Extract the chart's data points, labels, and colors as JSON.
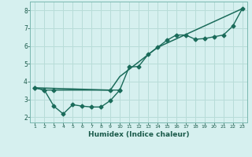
{
  "xlabel": "Humidex (Indice chaleur)",
  "background_color": "#d6f0ef",
  "grid_color": "#b8dcd8",
  "line_color": "#1a6b5a",
  "xlim": [
    0.5,
    23.5
  ],
  "ylim": [
    1.7,
    8.5
  ],
  "yticks": [
    2,
    3,
    4,
    5,
    6,
    7,
    8
  ],
  "xticks": [
    1,
    2,
    3,
    4,
    5,
    6,
    7,
    8,
    9,
    10,
    11,
    12,
    13,
    14,
    15,
    16,
    17,
    18,
    19,
    20,
    21,
    22,
    23
  ],
  "series2_x": [
    1,
    2,
    3,
    4,
    5,
    6,
    7,
    8,
    9,
    10,
    11,
    12,
    13,
    14,
    15,
    16,
    17,
    18,
    19,
    20,
    21,
    22,
    23
  ],
  "series2_y": [
    3.65,
    3.52,
    2.62,
    2.18,
    2.7,
    2.62,
    2.57,
    2.57,
    2.93,
    3.52,
    4.82,
    4.85,
    5.52,
    5.92,
    6.32,
    6.62,
    6.62,
    6.38,
    6.42,
    6.52,
    6.62,
    7.12,
    8.1
  ],
  "series1_x": [
    1,
    2,
    3,
    9,
    10
  ],
  "series1_y": [
    3.65,
    3.52,
    3.52,
    3.52,
    3.52
  ],
  "series3_x": [
    1,
    9,
    10,
    14,
    23
  ],
  "series3_y": [
    3.65,
    3.52,
    4.28,
    5.92,
    8.1
  ]
}
